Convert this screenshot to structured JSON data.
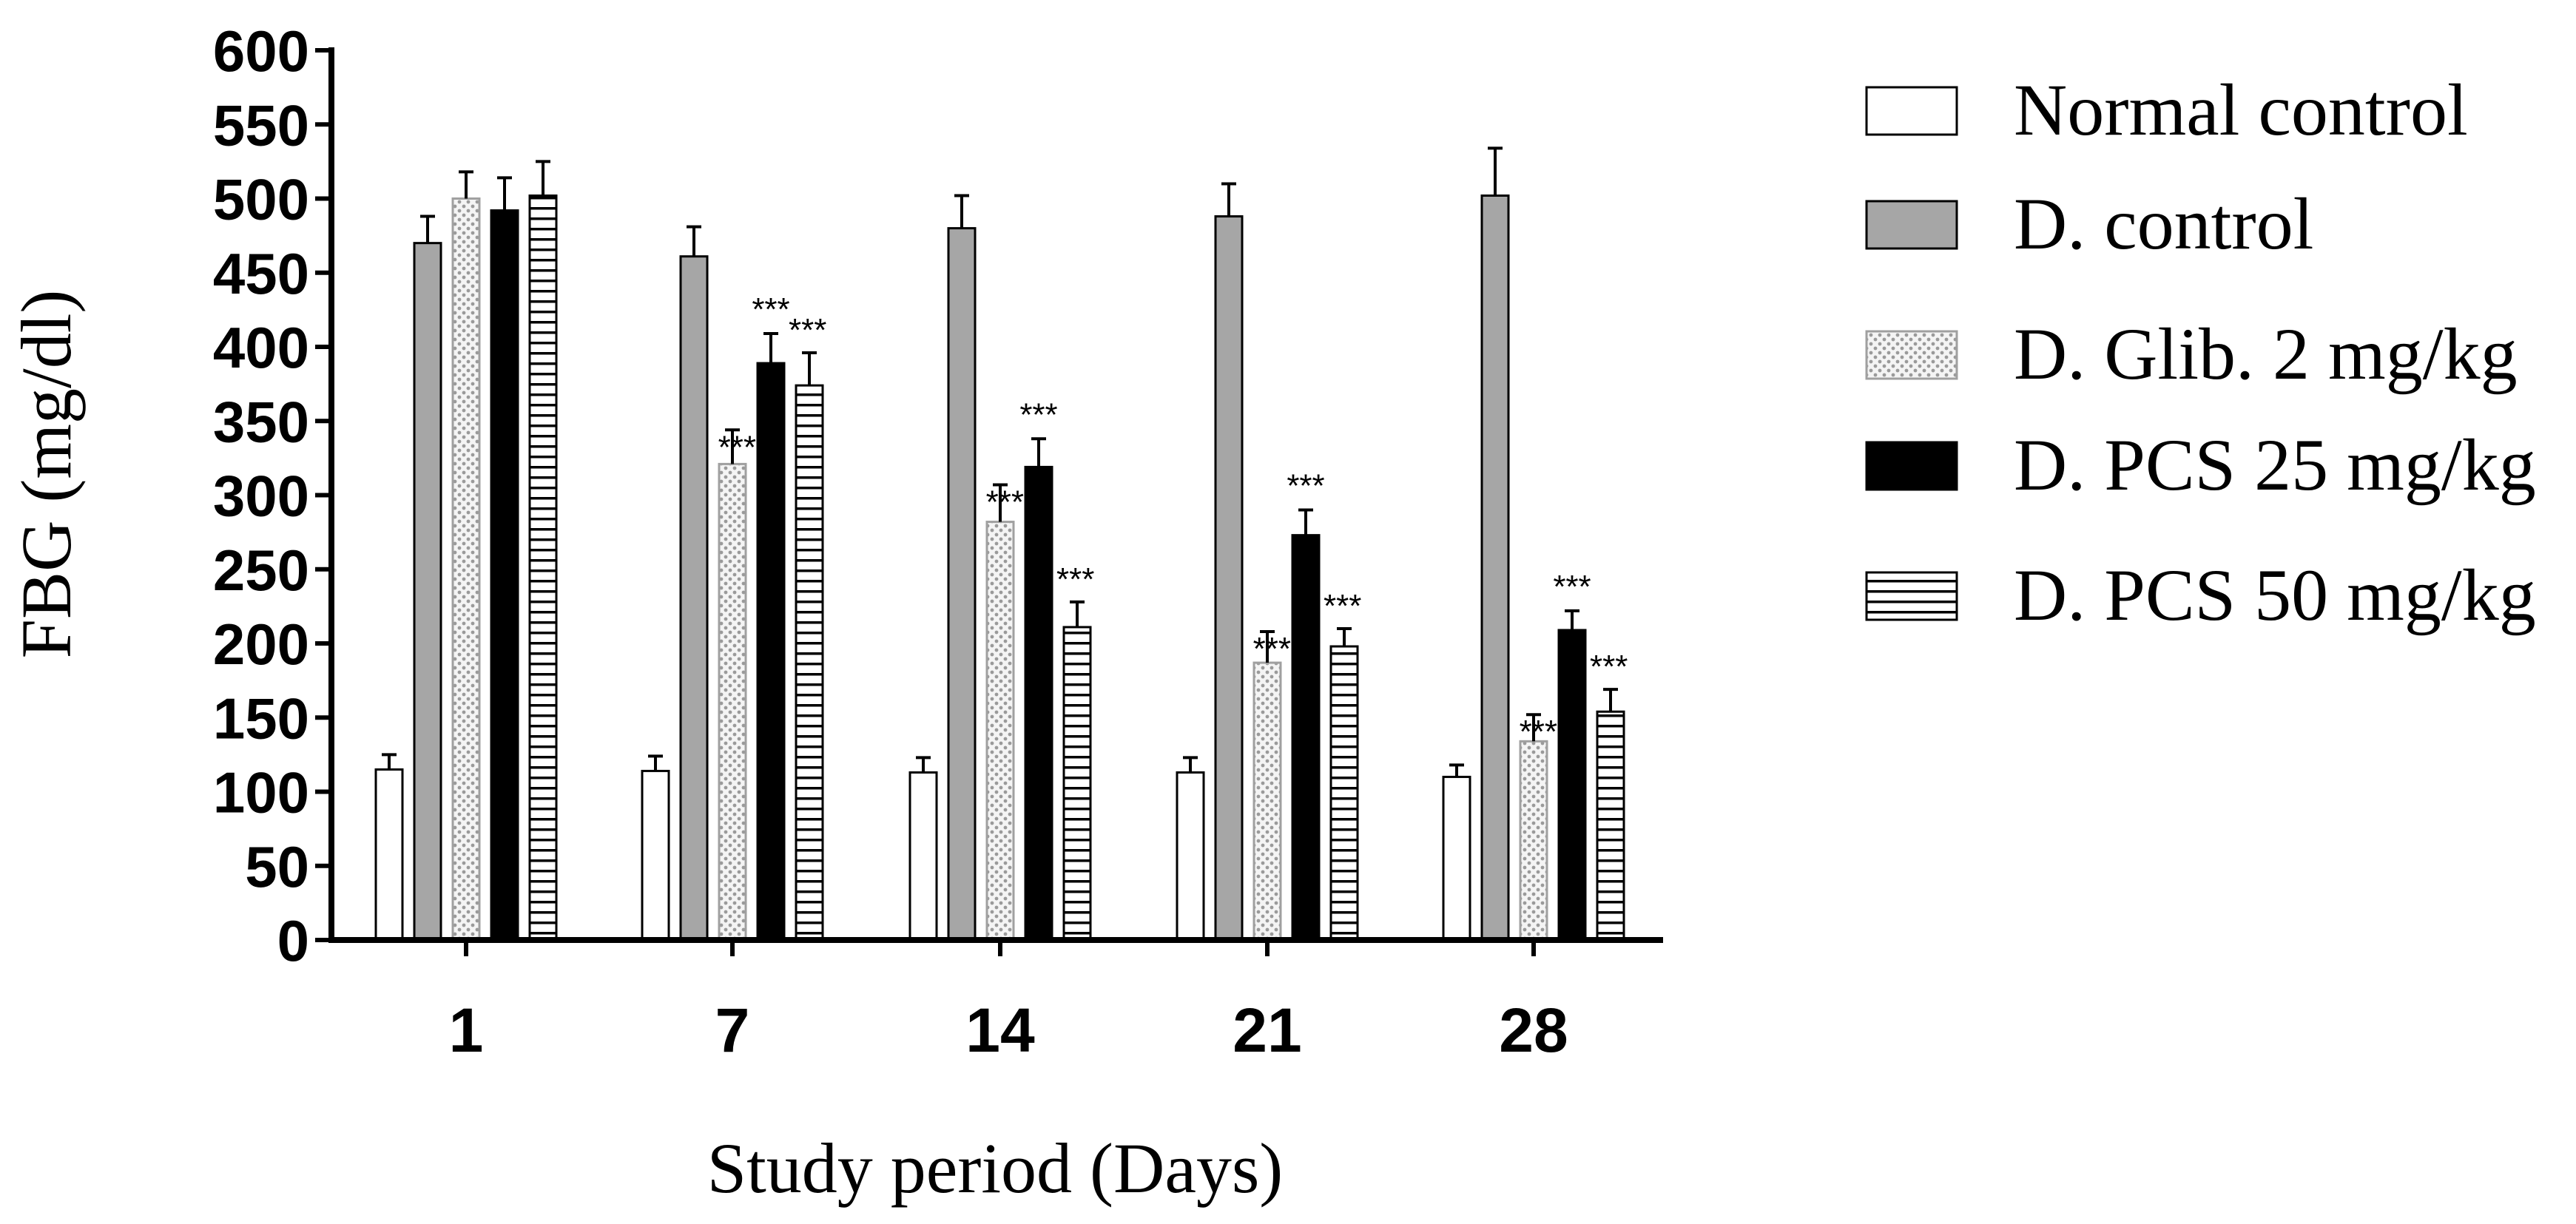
{
  "chart_data": {
    "type": "bar",
    "xlabel": "Study period (Days)",
    "ylabel": "FBG (mg/dl)",
    "categories": [
      "1",
      "7",
      "14",
      "21",
      "28"
    ],
    "ylim": [
      0,
      600
    ],
    "yticks": [
      0,
      50,
      100,
      150,
      200,
      250,
      300,
      350,
      400,
      450,
      500,
      550,
      600
    ],
    "grid": false,
    "legend_position": "right",
    "significance_label": "***",
    "series": [
      {
        "name": "Normal control",
        "pattern": "open",
        "color": "#ffffff",
        "values": [
          115,
          114,
          113,
          113,
          110
        ],
        "errors": [
          10,
          10,
          10,
          10,
          8
        ],
        "significant": [
          false,
          false,
          false,
          false,
          false
        ]
      },
      {
        "name": "D. control",
        "pattern": "gray",
        "color": "#a6a6a6",
        "values": [
          470,
          461,
          480,
          488,
          502
        ],
        "errors": [
          18,
          20,
          22,
          22,
          32
        ],
        "significant": [
          false,
          false,
          false,
          false,
          false
        ]
      },
      {
        "name": "D. Glib. 2 mg/kg",
        "pattern": "dotted",
        "color": "#f2f2f2",
        "values": [
          500,
          321,
          282,
          187,
          134
        ],
        "errors": [
          18,
          23,
          25,
          21,
          18
        ],
        "significant": [
          false,
          true,
          true,
          true,
          true
        ]
      },
      {
        "name": "D. PCS 25 mg/kg",
        "pattern": "solid-black",
        "color": "#000000",
        "values": [
          492,
          389,
          319,
          273,
          209
        ],
        "errors": [
          22,
          20,
          19,
          17,
          13
        ],
        "significant": [
          false,
          true,
          true,
          true,
          true
        ]
      },
      {
        "name": "D. PCS 50 mg/kg",
        "pattern": "horizontal-lines",
        "color": "#ffffff",
        "values": [
          502,
          374,
          211,
          198,
          154
        ],
        "errors": [
          23,
          22,
          17,
          12,
          15
        ],
        "significant": [
          false,
          true,
          true,
          true,
          true
        ]
      }
    ]
  }
}
